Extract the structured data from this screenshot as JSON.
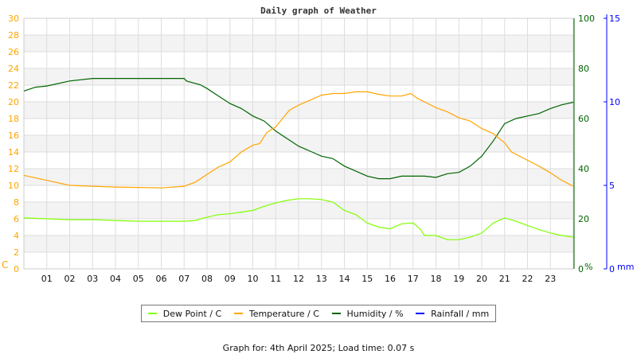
{
  "chart_data": {
    "type": "line",
    "title": "Daily graph of Weather",
    "x_tick_labels": [
      "01",
      "02",
      "03",
      "04",
      "05",
      "06",
      "07",
      "08",
      "09",
      "10",
      "11",
      "12",
      "13",
      "14",
      "15",
      "16",
      "17",
      "18",
      "19",
      "20",
      "21",
      "22",
      "23"
    ],
    "xlim": [
      0,
      24
    ],
    "axes": {
      "left": {
        "label": "C",
        "ylim": [
          0,
          30
        ],
        "ticks": [
          0,
          2,
          4,
          6,
          8,
          10,
          12,
          14,
          16,
          18,
          20,
          22,
          24,
          26,
          28,
          30
        ],
        "color": "#ffa500"
      },
      "right": {
        "label": "%",
        "ylim": [
          0,
          100
        ],
        "ticks": [
          0,
          20,
          40,
          60,
          80,
          100
        ],
        "color": "#006400"
      },
      "far_right": {
        "label": "mm",
        "ylim": [
          0,
          15
        ],
        "ticks": [
          0,
          5,
          10,
          15
        ],
        "color": "#0000ff"
      }
    },
    "grid": true,
    "legend_placement": "bottom",
    "series": [
      {
        "name": "Dew Point / C",
        "axis": "left",
        "color": "#80ff00",
        "x": [
          0,
          1,
          2,
          3,
          4,
          5,
          6,
          7,
          7.5,
          8,
          8.5,
          9,
          9.5,
          10,
          10.5,
          11,
          11.5,
          12,
          12.5,
          13,
          13.5,
          14,
          14.5,
          15,
          15.5,
          16,
          16.5,
          17,
          17.3,
          17.5,
          18,
          18.5,
          19,
          19.5,
          20,
          20.5,
          21,
          21.5,
          22,
          22.5,
          23,
          23.5,
          24
        ],
        "y": [
          6.1,
          6,
          5.9,
          5.9,
          5.8,
          5.7,
          5.7,
          5.7,
          5.8,
          6.2,
          6.5,
          6.6,
          6.8,
          7,
          7.5,
          7.9,
          8.2,
          8.4,
          8.4,
          8.3,
          8,
          7,
          6.5,
          5.5,
          5,
          4.8,
          5.4,
          5.5,
          4.8,
          4,
          4,
          3.5,
          3.5,
          3.8,
          4.3,
          5.5,
          6.1,
          5.7,
          5.2,
          4.7,
          4.3,
          4,
          3.8
        ]
      },
      {
        "name": "Temperature / C",
        "axis": "left",
        "color": "#ffa500",
        "x": [
          0,
          1,
          2,
          3,
          4,
          5,
          6,
          7,
          7.5,
          8,
          8.5,
          9,
          9.5,
          10,
          10.3,
          10.6,
          11,
          11.3,
          11.6,
          12,
          12.5,
          13,
          13.5,
          14,
          14.5,
          15,
          15.5,
          16,
          16.5,
          16.9,
          17.2,
          17.5,
          18,
          18.5,
          19,
          19.5,
          20,
          20.5,
          21,
          21.3,
          22,
          22.5,
          23,
          23.5,
          24
        ],
        "y": [
          11.2,
          10.6,
          10,
          9.9,
          9.8,
          9.75,
          9.7,
          9.9,
          10.4,
          11.3,
          12.2,
          12.8,
          14,
          14.8,
          15,
          16.3,
          17,
          18,
          19,
          19.6,
          20.2,
          20.8,
          21,
          21,
          21.2,
          21.2,
          20.9,
          20.7,
          20.7,
          21,
          20.4,
          20,
          19.3,
          18.8,
          18.1,
          17.7,
          16.8,
          16.2,
          15.1,
          14,
          13,
          12.3,
          11.5,
          10.6,
          9.9
        ]
      },
      {
        "name": "Humidity / %",
        "axis": "right",
        "color": "#006400",
        "x": [
          0,
          0.5,
          1,
          2,
          3,
          4,
          5,
          6,
          7,
          7.1,
          7.7,
          8,
          8.5,
          9,
          9.5,
          10,
          10.5,
          11,
          11.5,
          12,
          12.5,
          13,
          13.5,
          14,
          14.5,
          15,
          15.5,
          16,
          16.5,
          17,
          17.5,
          18,
          18.5,
          19,
          19.5,
          20,
          20.5,
          21,
          21.5,
          22,
          22.5,
          23,
          23.5,
          24
        ],
        "y": [
          71,
          72.5,
          73,
          75,
          76,
          76,
          76,
          76,
          76,
          75,
          73.5,
          72,
          69,
          66,
          64,
          61,
          59,
          55,
          52,
          49,
          47,
          45,
          44,
          41,
          39,
          37,
          36,
          36,
          37,
          37,
          37,
          36.5,
          38,
          38.5,
          41,
          45,
          51,
          58,
          60,
          61,
          62,
          64,
          65.5,
          66.5
        ]
      },
      {
        "name": "Rainfall / mm",
        "axis": "far_right",
        "color": "#0000ff",
        "x": [],
        "y": []
      }
    ]
  },
  "footer": "Graph for: 4th April 2025; Load time: 0.07 s"
}
